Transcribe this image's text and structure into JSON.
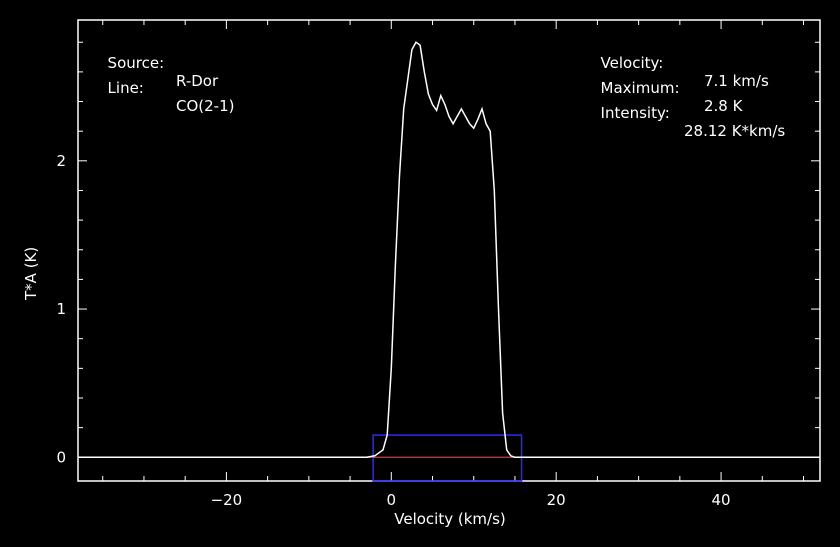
{
  "chart_data": {
    "type": "line",
    "xlabel": "Velocity (km/s)",
    "ylabel": "T*A (K)",
    "xlim": [
      -38,
      52
    ],
    "ylim": [
      -0.16,
      2.95
    ],
    "xticks": [
      -20,
      0,
      20,
      40
    ],
    "yticks": [
      0,
      1,
      2
    ],
    "grid": false,
    "info": {
      "source_label": "Source:",
      "source_value": "R-Dor",
      "line_label": "Line:",
      "line_value": "CO(2-1)",
      "velocity_label": "Velocity:",
      "velocity_value": "7.1 km/s",
      "maximum_label": "Maximum:",
      "maximum_value": "2.8 K",
      "intensity_label": "Intensity:",
      "intensity_value": "28.12 K*km/s"
    },
    "baseline": {
      "y": 0,
      "x_range": [
        -38,
        52
      ]
    },
    "integration_window": {
      "x_range": [
        -2.2,
        15.8
      ],
      "y_range": [
        -0.16,
        0.15
      ]
    },
    "series": [
      {
        "x": [
          -38,
          -30,
          -20,
          -10,
          -3,
          -2,
          -1,
          -0.5,
          0,
          0.5,
          1,
          1.5,
          2,
          2.5,
          3,
          3.5,
          4,
          4.5,
          5,
          5.5,
          6,
          6.5,
          7,
          7.5,
          8,
          8.5,
          9,
          9.5,
          10,
          10.5,
          11,
          11.5,
          12,
          12.5,
          13,
          13.5,
          14,
          14.5,
          15,
          16,
          20,
          30,
          40,
          52
        ],
        "y": [
          0,
          0,
          0,
          0,
          0,
          0.01,
          0.05,
          0.15,
          0.6,
          1.3,
          1.9,
          2.35,
          2.55,
          2.75,
          2.8,
          2.78,
          2.6,
          2.45,
          2.38,
          2.34,
          2.44,
          2.38,
          2.3,
          2.25,
          2.3,
          2.35,
          2.3,
          2.25,
          2.22,
          2.28,
          2.35,
          2.25,
          2.2,
          1.8,
          1.0,
          0.3,
          0.05,
          0.01,
          0,
          0,
          0,
          0,
          0,
          0
        ]
      }
    ],
    "colors": {
      "background": "#000000",
      "spectrum": "#ffffff",
      "baseline": "#ff2a2a",
      "window": "#2a2aff",
      "axes": "#ffffff"
    }
  }
}
